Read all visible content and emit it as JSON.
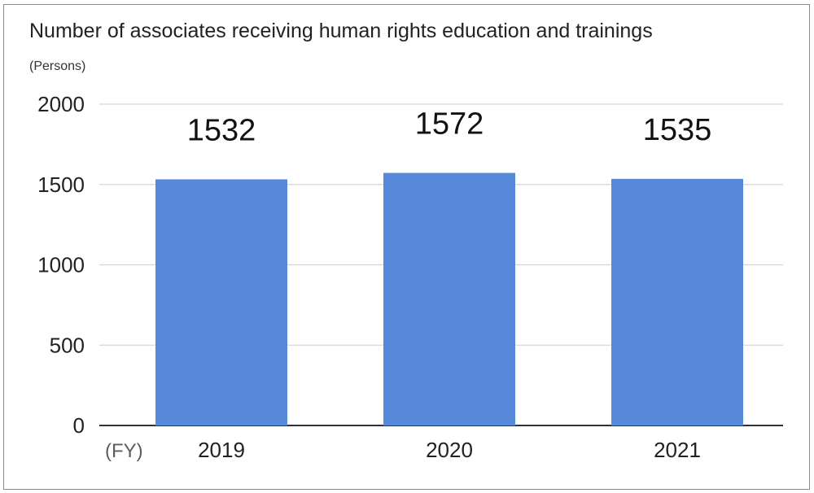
{
  "chart_data": {
    "type": "bar",
    "title": "Number of associates receiving human rights education and trainings",
    "ylabel": "(Persons)",
    "xlabel": "(FY)",
    "categories": [
      "2019",
      "2020",
      "2021"
    ],
    "values": [
      1532,
      1572,
      1535
    ],
    "data_labels": [
      "1532",
      "1572",
      "1535"
    ],
    "yticks": [
      0,
      500,
      1000,
      1500,
      2000
    ],
    "ylim": [
      0,
      2000
    ],
    "grid": true,
    "legend": "none",
    "bar_color": "#5789db"
  }
}
